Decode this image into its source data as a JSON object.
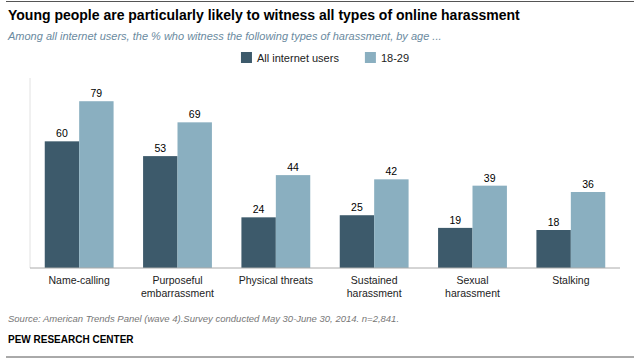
{
  "chart_data": {
    "type": "bar",
    "title": "Young people are particularly likely to witness all types of online harassment",
    "subtitle": "Among all internet users, the % who witness the following types of harassment, by age ...",
    "categories": [
      "Name-calling",
      "Purposeful\nembarrassment",
      "Physical  threats",
      "Sustained\nharassment",
      "Sexual\nharassment",
      "Stalking"
    ],
    "series": [
      {
        "name": "All internet users",
        "color": "#3d5a6b",
        "values": [
          60,
          53,
          24,
          25,
          19,
          18
        ]
      },
      {
        "name": "18-29",
        "color": "#8aafc0",
        "values": [
          79,
          69,
          44,
          42,
          39,
          36
        ]
      }
    ],
    "ylim": [
      0,
      90
    ],
    "data_labels": true,
    "tick_labels": "x",
    "legend": "top",
    "grid": false,
    "annotations": [
      "Source: American Trends Panel (wave 4).Survey conducted May 30-June 30, 2014. n=2,841.",
      "PEW RESEARCH CENTER"
    ]
  }
}
